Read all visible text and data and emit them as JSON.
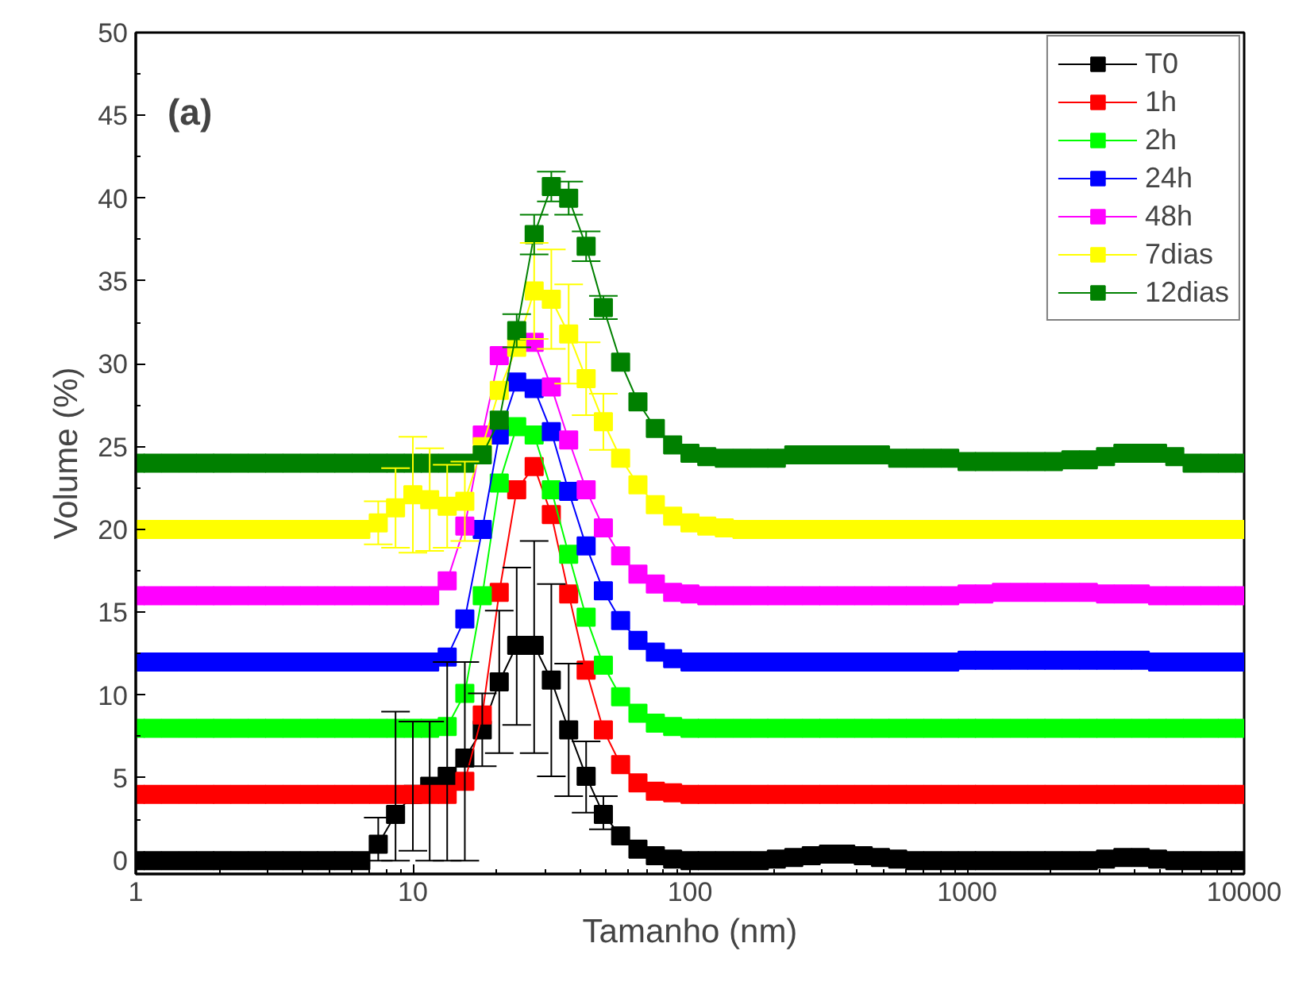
{
  "chart_data": {
    "type": "line",
    "xlabel": "Tamanho (nm)",
    "ylabel": "Volume (%)",
    "annotations": [
      "(a)"
    ],
    "x": [
      1,
      1.15,
      1.33,
      1.54,
      1.78,
      2.05,
      2.37,
      2.74,
      3.16,
      3.65,
      4.22,
      4.87,
      5.62,
      6.49,
      7.5,
      8.66,
      10,
      11.5,
      13.3,
      15.4,
      17.8,
      20.5,
      23.7,
      27.4,
      31.6,
      36.5,
      42.2,
      48.7,
      56.2,
      64.9,
      75,
      86.6,
      100,
      115,
      133,
      154,
      178,
      205,
      237,
      274,
      316,
      365,
      422,
      487,
      562,
      649,
      750,
      866,
      1000,
      1150,
      1330,
      1540,
      1780,
      2050,
      2370,
      2740,
      3160,
      3650,
      4220,
      4870,
      5620,
      6490,
      7500,
      8660,
      10000
    ],
    "log": "x",
    "xlim": [
      1,
      10000
    ],
    "xticks": [
      1,
      10,
      100,
      1000,
      10000
    ],
    "ylim": [
      -0.8,
      50
    ],
    "yticks": [
      0,
      5,
      10,
      15,
      20,
      25,
      30,
      35,
      40,
      45,
      50
    ],
    "grid": false,
    "legend": "top right",
    "marker": "square",
    "line_style": "solid",
    "series": [
      {
        "name": "T0",
        "color": "#000000",
        "values": [
          0,
          0,
          0,
          0,
          0,
          0,
          0,
          0,
          0,
          0,
          0,
          0,
          0,
          0,
          1.0,
          2.8,
          4.0,
          4.5,
          5.1,
          6.2,
          7.9,
          10.8,
          13.0,
          13.0,
          10.9,
          7.9,
          5.1,
          2.8,
          1.5,
          0.7,
          0.3,
          0.1,
          0,
          0,
          0,
          0,
          0,
          0.1,
          0.2,
          0.3,
          0.4,
          0.4,
          0.3,
          0.2,
          0.1,
          0,
          0,
          0,
          0,
          0,
          0,
          0,
          0,
          0,
          0,
          0,
          0.1,
          0.2,
          0.2,
          0.1,
          0,
          0,
          0,
          0,
          0
        ],
        "errors": [
          null,
          null,
          null,
          null,
          null,
          null,
          null,
          null,
          null,
          null,
          null,
          null,
          null,
          null,
          [
            0,
            2.6
          ],
          [
            0,
            9.0
          ],
          [
            0.6,
            8.4
          ],
          [
            0,
            8.4
          ],
          [
            0,
            12.0
          ],
          [
            0,
            12.0
          ],
          [
            5.7,
            10.1
          ],
          [
            6.5,
            15.1
          ],
          [
            8.2,
            17.7
          ],
          [
            6.5,
            19.3
          ],
          [
            5.1,
            16.7
          ],
          [
            3.9,
            11.9
          ],
          [
            2.9,
            7.2
          ],
          [
            1.9,
            3.9
          ],
          null,
          null,
          null,
          null,
          null,
          null,
          null,
          null,
          null,
          null,
          null,
          null,
          null,
          null,
          null,
          null,
          null,
          null,
          null,
          null,
          null,
          null,
          null,
          null,
          null,
          null,
          null,
          null,
          null,
          null,
          null,
          null,
          null,
          null,
          null,
          null,
          null
        ]
      },
      {
        "name": "1h",
        "color": "#ff0000",
        "values": [
          4,
          4,
          4,
          4,
          4,
          4,
          4,
          4,
          4,
          4,
          4,
          4,
          4,
          4,
          4,
          4,
          4,
          4,
          4,
          4.8,
          8.8,
          16.2,
          22.4,
          23.8,
          20.9,
          16.1,
          11.5,
          7.9,
          5.8,
          4.7,
          4.2,
          4.1,
          4,
          4,
          4,
          4,
          4,
          4,
          4,
          4,
          4,
          4,
          4,
          4,
          4,
          4,
          4,
          4,
          4,
          4,
          4,
          4,
          4,
          4,
          4,
          4,
          4,
          4,
          4,
          4,
          4,
          4,
          4,
          4,
          4
        ]
      },
      {
        "name": "2h",
        "color": "#00ff00",
        "values": [
          8,
          8,
          8,
          8,
          8,
          8,
          8,
          8,
          8,
          8,
          8,
          8,
          8,
          8,
          8,
          8,
          8,
          8,
          8.1,
          10.1,
          16.0,
          22.8,
          26.2,
          25.7,
          22.4,
          18.5,
          14.7,
          11.8,
          9.9,
          8.9,
          8.3,
          8.1,
          8,
          8,
          8,
          8,
          8,
          8,
          8,
          8,
          8,
          8,
          8,
          8,
          8,
          8,
          8,
          8,
          8,
          8,
          8,
          8,
          8,
          8,
          8,
          8,
          8,
          8,
          8,
          8,
          8,
          8,
          8,
          8,
          8
        ]
      },
      {
        "name": "24h",
        "color": "#0000ff",
        "values": [
          12,
          12,
          12,
          12,
          12,
          12,
          12,
          12,
          12,
          12,
          12,
          12,
          12,
          12,
          12,
          12,
          12,
          12,
          12.3,
          14.6,
          20.0,
          25.7,
          28.9,
          28.5,
          25.9,
          22.3,
          19.0,
          16.3,
          14.5,
          13.3,
          12.6,
          12.2,
          12,
          12,
          12,
          12,
          12,
          12,
          12,
          12,
          12,
          12,
          12,
          12,
          12,
          12,
          12,
          12,
          12.1,
          12.1,
          12.1,
          12.1,
          12.1,
          12.1,
          12.1,
          12.1,
          12.1,
          12.1,
          12.1,
          12,
          12,
          12,
          12,
          12,
          12
        ]
      },
      {
        "name": "48h",
        "color": "#ff00ff",
        "values": [
          16,
          16,
          16,
          16,
          16,
          16,
          16,
          16,
          16,
          16,
          16,
          16,
          16,
          16,
          16,
          16,
          16,
          16,
          16.9,
          20.2,
          25.7,
          30.5,
          null,
          31.3,
          28.6,
          25.4,
          22.4,
          20.1,
          18.4,
          17.3,
          16.7,
          16.2,
          16.1,
          16,
          16,
          16,
          16,
          16,
          16,
          16,
          16,
          16,
          16,
          16,
          16,
          16,
          16,
          16,
          16.1,
          16.1,
          16.2,
          16.2,
          16.2,
          16.2,
          16.2,
          16.2,
          16.1,
          16.1,
          16.1,
          16,
          16,
          16,
          16,
          16,
          16
        ]
      },
      {
        "name": "7dias",
        "color": "#ffff00",
        "values": [
          20,
          20,
          20,
          20,
          20,
          20,
          20,
          20,
          20,
          20,
          20,
          20,
          20,
          20,
          20.4,
          21.3,
          22.1,
          21.8,
          21.4,
          21.7,
          25.0,
          28.4,
          31.0,
          34.4,
          33.9,
          31.8,
          29.1,
          26.5,
          24.3,
          22.7,
          21.5,
          20.8,
          20.4,
          20.2,
          20.1,
          20,
          20,
          20,
          20,
          20,
          20,
          20,
          20,
          20,
          20,
          20,
          20,
          20,
          20,
          20,
          20,
          20,
          20,
          20,
          20,
          20,
          20,
          20,
          20,
          20,
          20,
          20,
          20,
          20,
          20
        ],
        "errors": [
          null,
          null,
          null,
          null,
          null,
          null,
          null,
          null,
          null,
          null,
          null,
          null,
          null,
          null,
          1.3,
          2.4,
          3.5,
          3.1,
          2.5,
          2.4,
          null,
          null,
          null,
          2.9,
          3.0,
          3.0,
          2.2,
          1.7,
          null,
          null,
          null,
          null,
          null,
          null,
          null,
          null,
          null,
          null,
          null,
          null,
          null,
          null,
          null,
          null,
          null,
          null,
          null,
          null,
          null,
          null,
          null,
          null,
          null,
          null,
          null,
          null,
          null,
          null,
          null,
          null,
          null,
          null,
          null,
          null,
          null
        ]
      },
      {
        "name": "12dias",
        "color": "#008000",
        "values": [
          24,
          24,
          24,
          24,
          24,
          24,
          24,
          24,
          24,
          24,
          24,
          24,
          24,
          24,
          24,
          24,
          24,
          24,
          24,
          24,
          24.5,
          26.6,
          32.0,
          37.8,
          40.7,
          40.0,
          37.1,
          33.4,
          30.1,
          27.7,
          26.1,
          25.1,
          24.6,
          24.4,
          24.3,
          24.3,
          24.3,
          24.3,
          24.5,
          24.5,
          24.5,
          24.5,
          24.5,
          24.5,
          24.3,
          24.3,
          24.3,
          24.3,
          24.1,
          24.1,
          24.1,
          24.1,
          24.1,
          24.1,
          24.2,
          24.2,
          24.4,
          24.6,
          24.6,
          24.6,
          24.4,
          24,
          24,
          24,
          24
        ],
        "errors": [
          null,
          null,
          null,
          null,
          null,
          null,
          null,
          null,
          null,
          null,
          null,
          null,
          null,
          null,
          null,
          null,
          null,
          null,
          null,
          null,
          null,
          null,
          1.0,
          1.2,
          0.9,
          1.0,
          0.9,
          0.7,
          null,
          null,
          null,
          null,
          null,
          null,
          null,
          null,
          null,
          null,
          null,
          null,
          null,
          null,
          null,
          null,
          null,
          null,
          null,
          null,
          null,
          null,
          null,
          null,
          null,
          null,
          null,
          null,
          null,
          null,
          null,
          null,
          null,
          null,
          null,
          null,
          null
        ]
      }
    ]
  }
}
